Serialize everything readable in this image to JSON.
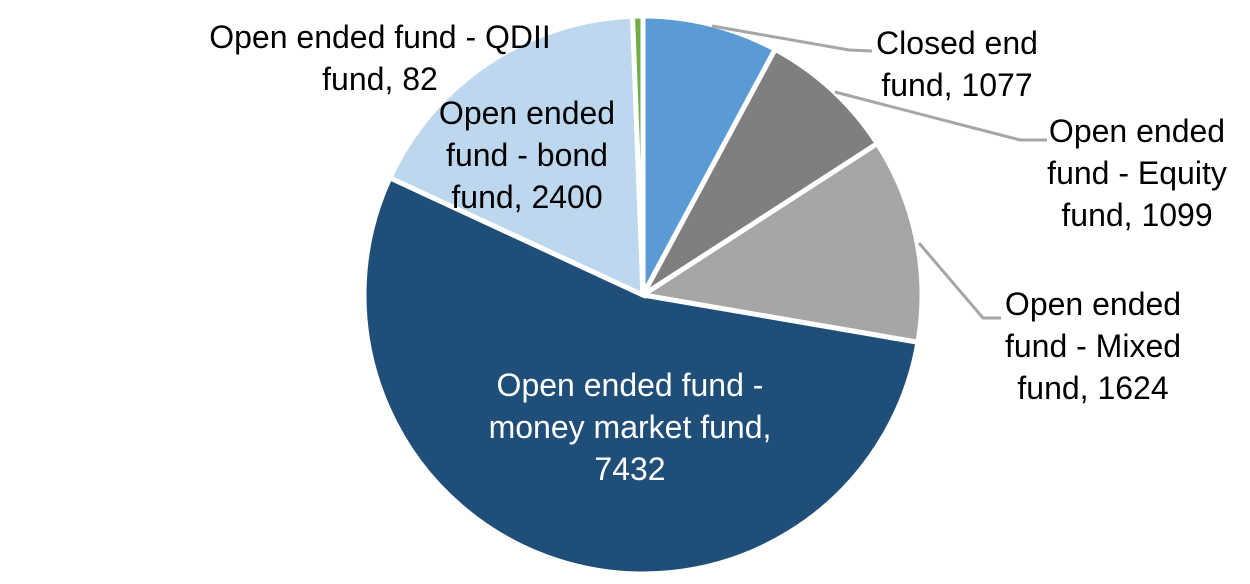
{
  "chart_data": {
    "type": "pie",
    "title": "",
    "legend": "none",
    "direction": "clockwise",
    "start_angle_deg": 0,
    "total": 13714,
    "background_color": "#FFFFFF",
    "slice_border_color": "#FFFFFF",
    "leader_line_color": "#A6A6A6",
    "slices": [
      {
        "label": "Closed end fund",
        "value": 1077,
        "color": "#5B9BD5",
        "label_text": "Closed end fund, 1077"
      },
      {
        "label": "Open ended fund - Equity fund",
        "value": 1099,
        "color": "#7F7F7F",
        "label_text": "Open ended fund - Equity fund, 1099"
      },
      {
        "label": "Open ended fund - Mixed fund",
        "value": 1624,
        "color": "#A6A6A6",
        "label_text": "Open ended fund - Mixed fund, 1624"
      },
      {
        "label": "Open ended fund - money market fund",
        "value": 7432,
        "color": "#1F4E79",
        "label_text": "Open ended fund - money market fund, 7432",
        "label_color": "#FFFFFF"
      },
      {
        "label": "Open ended fund - bond fund",
        "value": 2400,
        "color": "#BDD7EE",
        "label_text": "Open ended fund - bond fund, 2400"
      },
      {
        "label": "Open ended fund - QDII fund",
        "value": 82,
        "color": "#70AD47",
        "label_text": "Open ended fund - QDII fund, 82"
      }
    ]
  },
  "labels": {
    "qdii": {
      "lines": [
        "Open ended fund - QDII",
        "fund, 82"
      ]
    },
    "bond": {
      "lines": [
        "Open ended",
        "fund - bond",
        "fund, 2400"
      ]
    },
    "money_market": {
      "lines": [
        "Open ended fund -",
        "money market fund,",
        "7432"
      ]
    },
    "closed_end": {
      "lines": [
        "Closed end",
        "fund, 1077"
      ]
    },
    "equity": {
      "lines": [
        "Open ended",
        "fund - Equity",
        "fund, 1099"
      ]
    },
    "mixed": {
      "lines": [
        "Open ended",
        "fund - Mixed",
        "fund, 1624"
      ]
    }
  }
}
